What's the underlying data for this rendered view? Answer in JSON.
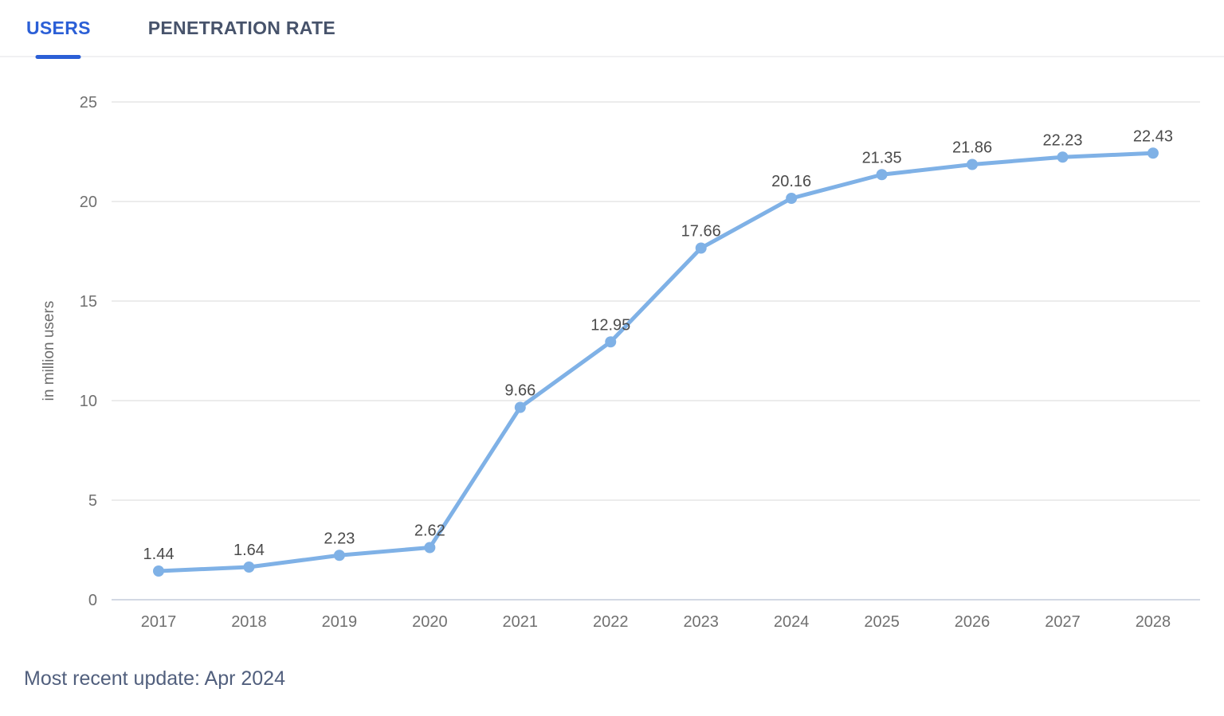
{
  "tabs": [
    {
      "label": "USERS",
      "active": true
    },
    {
      "label": "PENETRATION RATE",
      "active": false
    }
  ],
  "footer": {
    "update_text": "Most recent update: Apr 2024"
  },
  "chart_data": {
    "type": "line",
    "title": "",
    "xlabel": "",
    "ylabel": "in million users",
    "categories": [
      "2017",
      "2018",
      "2019",
      "2020",
      "2021",
      "2022",
      "2023",
      "2024",
      "2025",
      "2026",
      "2027",
      "2028"
    ],
    "values": [
      1.44,
      1.64,
      2.23,
      2.62,
      9.66,
      12.95,
      17.66,
      20.16,
      21.35,
      21.86,
      22.23,
      22.43
    ],
    "value_labels": [
      "1.44",
      "1.64",
      "2.23",
      "2.62",
      "9.66",
      "12.95",
      "17.66",
      "20.16",
      "21.35",
      "21.86",
      "22.23",
      "22.43"
    ],
    "yticks": [
      0,
      5,
      10,
      15,
      20,
      25
    ],
    "ylim": [
      0,
      25
    ],
    "grid": true,
    "legend": "none",
    "colors": {
      "line": "#7fb1e6",
      "marker": "#7fb1e6",
      "value_label": "#4b4b4b",
      "tick_label": "#707070",
      "axis_title": "#6b6b6b",
      "gridline": "#e5e5e5",
      "axis_line": "#d3d8e4",
      "accent_tab": "#2b5fd6",
      "inactive_tab": "#47536b",
      "footer_text": "#515f7d"
    }
  }
}
